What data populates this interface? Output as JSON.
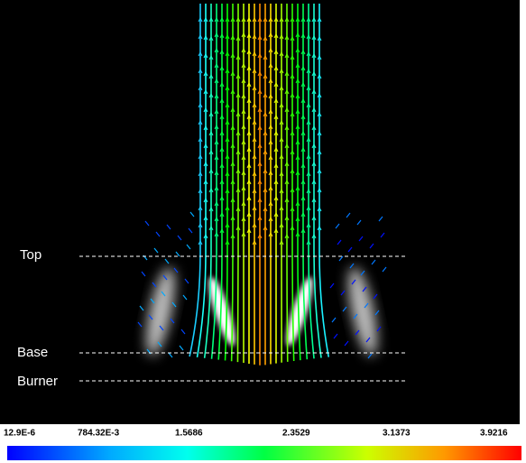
{
  "annotations": {
    "top": "Top",
    "base": "Base",
    "burner": "Burner"
  },
  "colorbar": {
    "ticks": [
      "12.9E-6",
      "784.32E-3",
      "1.5686",
      "2.3529",
      "3.1373",
      "3.9216"
    ]
  }
}
